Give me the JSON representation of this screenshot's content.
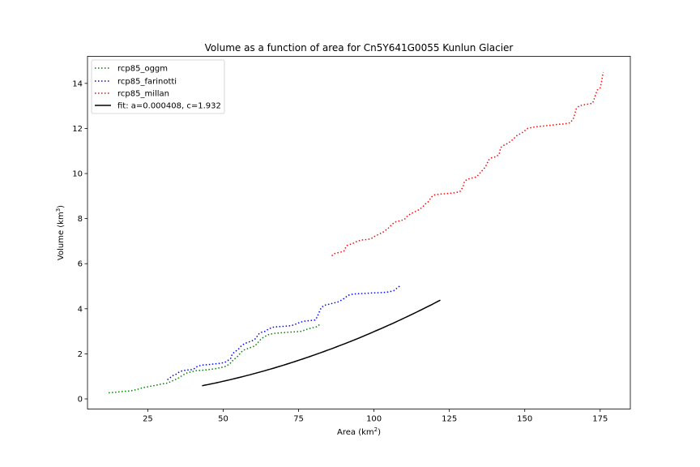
{
  "chart_data": {
    "type": "line",
    "title": "Volume as a function of area for Cn5Y641G0055 Kunlun Glacier",
    "xlabel": {
      "base": "Area (km",
      "sup": "2",
      "end": ")"
    },
    "ylabel": {
      "base": "Volume (km",
      "sup": "3",
      "end": ")"
    },
    "xlim": [
      5,
      185
    ],
    "ylim": [
      -0.45,
      15.2
    ],
    "xticks": [
      25,
      50,
      75,
      100,
      125,
      150,
      175
    ],
    "xtick_labels": [
      "25",
      "50",
      "75",
      "100",
      "125",
      "150",
      "175"
    ],
    "yticks": [
      0,
      2,
      4,
      6,
      8,
      10,
      12,
      14
    ],
    "ytick_labels": [
      "0",
      "2",
      "4",
      "6",
      "8",
      "10",
      "12",
      "14"
    ],
    "grid": false,
    "legend_position": "upper-left",
    "series": [
      {
        "name": "rcp85_oggm",
        "color": "#008000",
        "style": "dotted",
        "x": [
          12.0,
          14.5,
          17.0,
          19.5,
          21.5,
          23.5,
          25.5,
          27.5,
          29.5,
          31.5,
          32.5,
          33.5,
          34.5,
          35.5,
          36.5,
          38.0,
          39.5,
          41.0,
          43.0,
          45.0,
          47.0,
          49.0,
          51.0,
          52.5,
          53.5,
          54.5,
          55.5,
          56.5,
          57.5,
          58.5,
          59.5,
          60.5,
          61.5,
          62.5,
          63.5,
          65.0,
          66.5,
          68.0,
          70.0,
          72.0,
          74.0,
          76.0,
          77.0,
          78.0,
          79.5,
          81.0,
          82.0
        ],
        "y": [
          0.27,
          0.3,
          0.33,
          0.36,
          0.42,
          0.5,
          0.55,
          0.6,
          0.66,
          0.7,
          0.76,
          0.82,
          0.88,
          0.95,
          1.05,
          1.15,
          1.2,
          1.25,
          1.27,
          1.3,
          1.33,
          1.38,
          1.45,
          1.6,
          1.75,
          1.85,
          2.0,
          2.15,
          2.2,
          2.25,
          2.3,
          2.35,
          2.5,
          2.65,
          2.75,
          2.85,
          2.9,
          2.92,
          2.94,
          2.96,
          2.98,
          3.0,
          3.05,
          3.1,
          3.15,
          3.2,
          3.3
        ]
      },
      {
        "name": "rcp85_farinotti",
        "color": "#0000ff",
        "style": "dotted",
        "x": [
          31.5,
          32.5,
          33.5,
          34.5,
          35.5,
          36.5,
          38.0,
          39.5,
          40.5,
          41.5,
          43.0,
          45.0,
          47.0,
          49.0,
          50.5,
          51.5,
          52.5,
          53.0,
          54.0,
          55.0,
          56.0,
          57.0,
          58.0,
          59.0,
          60.0,
          61.0,
          61.5,
          62.5,
          64.0,
          65.0,
          66.5,
          68.0,
          70.0,
          72.0,
          73.5,
          74.5,
          75.5,
          77.0,
          79.0,
          80.5,
          81.0,
          81.5,
          82.0,
          82.5,
          83.5,
          85.0,
          86.5,
          88.0,
          89.5,
          90.5,
          91.5,
          93.0,
          95.0,
          97.0,
          99.0,
          101.0,
          103.0,
          105.0,
          106.5,
          107.5,
          108.5
        ],
        "y": [
          0.85,
          0.95,
          1.05,
          1.1,
          1.2,
          1.25,
          1.28,
          1.3,
          1.35,
          1.45,
          1.5,
          1.52,
          1.55,
          1.58,
          1.62,
          1.7,
          1.8,
          2.0,
          2.1,
          2.2,
          2.35,
          2.45,
          2.5,
          2.55,
          2.6,
          2.7,
          2.85,
          2.95,
          3.0,
          3.1,
          3.18,
          3.2,
          3.22,
          3.24,
          3.28,
          3.35,
          3.4,
          3.45,
          3.48,
          3.5,
          3.6,
          3.75,
          3.9,
          4.05,
          4.15,
          4.2,
          4.25,
          4.3,
          4.4,
          4.5,
          4.6,
          4.65,
          4.67,
          4.68,
          4.7,
          4.71,
          4.72,
          4.75,
          4.8,
          4.9,
          5.0
        ]
      },
      {
        "name": "rcp85_millan",
        "color": "#ff0000",
        "style": "dotted",
        "x": [
          86.0,
          87.0,
          88.5,
          90.0,
          90.5,
          91.0,
          92.0,
          93.0,
          94.5,
          96.0,
          97.5,
          99.0,
          100.0,
          101.5,
          103.0,
          104.0,
          105.0,
          106.0,
          107.0,
          108.5,
          110.0,
          111.0,
          112.0,
          113.5,
          115.0,
          116.0,
          117.0,
          118.0,
          118.5,
          119.0,
          120.0,
          121.5,
          123.0,
          125.0,
          127.0,
          128.5,
          129.5,
          130.0,
          131.0,
          132.5,
          134.0,
          135.0,
          136.0,
          137.0,
          137.5,
          138.0,
          139.0,
          140.5,
          141.5,
          142.0,
          143.0,
          144.5,
          146.0,
          147.5,
          149.0,
          150.0,
          151.0,
          152.5,
          154.0,
          155.5,
          157.0,
          159.0,
          161.0,
          163.0,
          165.0,
          166.0,
          166.5,
          167.0,
          168.0,
          169.5,
          171.0,
          172.5,
          173.0,
          174.0,
          175.0,
          175.5,
          176.0
        ],
        "y": [
          6.35,
          6.45,
          6.5,
          6.55,
          6.7,
          6.8,
          6.85,
          6.9,
          7.0,
          7.05,
          7.07,
          7.1,
          7.2,
          7.3,
          7.4,
          7.5,
          7.6,
          7.75,
          7.85,
          7.9,
          7.95,
          8.1,
          8.2,
          8.3,
          8.4,
          8.5,
          8.65,
          8.75,
          8.85,
          8.95,
          9.05,
          9.08,
          9.1,
          9.12,
          9.15,
          9.2,
          9.4,
          9.65,
          9.75,
          9.8,
          9.85,
          10.0,
          10.15,
          10.3,
          10.45,
          10.6,
          10.7,
          10.75,
          10.85,
          11.15,
          11.25,
          11.35,
          11.5,
          11.7,
          11.8,
          11.9,
          12.0,
          12.05,
          12.08,
          12.1,
          12.12,
          12.15,
          12.18,
          12.2,
          12.25,
          12.4,
          12.6,
          12.85,
          13.0,
          13.05,
          13.08,
          13.12,
          13.3,
          13.7,
          13.8,
          14.1,
          14.5
        ]
      }
    ],
    "fit": {
      "name": "fit: a=0.000408, c=1.932",
      "color": "#000000",
      "style": "solid",
      "a": 0.000408,
      "c": 1.932,
      "x_range": [
        43,
        122
      ]
    }
  }
}
